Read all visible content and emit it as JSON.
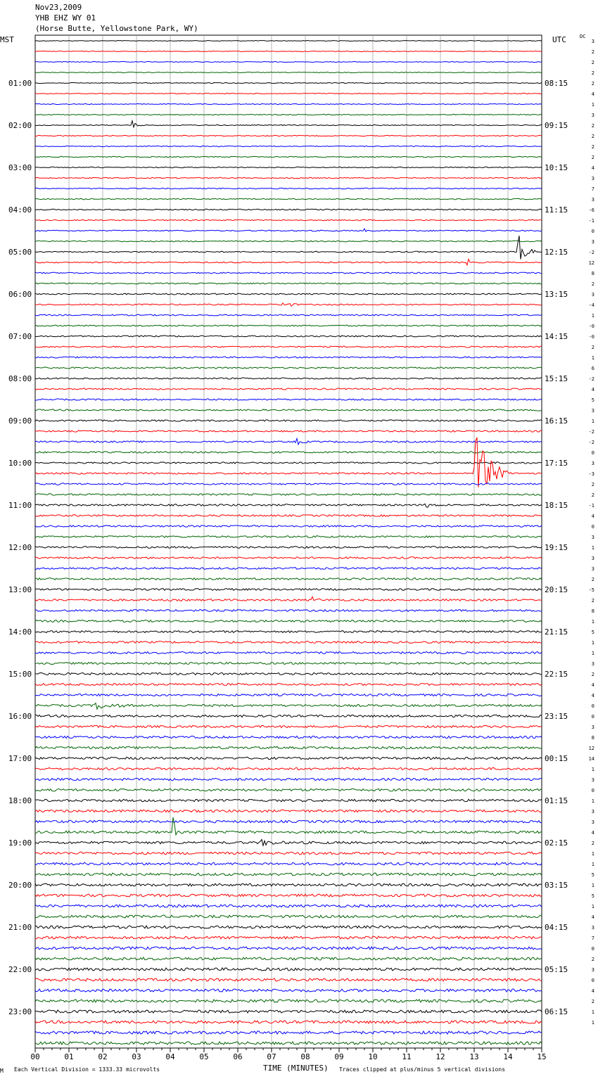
{
  "header": {
    "date": "Nov23,2009",
    "station": "YHB EHZ WY 01",
    "location": "(Horse Butte, Yellowstone Park, WY)"
  },
  "corner_labels": {
    "left": "MST",
    "right": "UTC",
    "dc": "DC"
  },
  "footer": {
    "scale_note": "Each Vertical Division = 1333.33 microvolts",
    "x_title": "TIME (MINUTES)",
    "clip_note": "Traces clipped at plus/minus 5 vertical divisions",
    "corner_mark": "M"
  },
  "colors": {
    "cycle": [
      "#000000",
      "#ff0000",
      "#0000ff",
      "#006400"
    ],
    "grid": "#888888"
  },
  "chart_data": {
    "type": "line",
    "title": "Nov23,2009",
    "xlabel": "TIME (MINUTES)",
    "xlim": [
      0,
      15
    ],
    "x_ticks": [
      "00",
      "01",
      "02",
      "03",
      "04",
      "05",
      "06",
      "07",
      "08",
      "09",
      "10",
      "11",
      "12",
      "13",
      "14",
      "15"
    ],
    "rows_per_hour": 4,
    "total_rows": 96,
    "left_hour_labels": [
      "01:00",
      "02:00",
      "03:00",
      "04:00",
      "05:00",
      "06:00",
      "07:00",
      "08:00",
      "09:00",
      "10:00",
      "11:00",
      "12:00",
      "13:00",
      "14:00",
      "15:00",
      "16:00",
      "17:00",
      "18:00",
      "19:00",
      "20:00",
      "21:00",
      "22:00",
      "23:00"
    ],
    "right_hour_labels": [
      "08:15",
      "09:15",
      "10:15",
      "11:15",
      "12:15",
      "13:15",
      "14:15",
      "15:15",
      "16:15",
      "17:15",
      "18:15",
      "19:15",
      "20:15",
      "21:15",
      "22:15",
      "23:15",
      "00:15",
      "01:15",
      "02:15",
      "03:15",
      "04:15",
      "05:15",
      "06:15"
    ],
    "dc_offsets": [
      "3",
      "2",
      "2",
      "2",
      "2",
      "4",
      "1",
      "3",
      "2",
      "2",
      "2",
      "2",
      "4",
      "3",
      "7",
      "3",
      "-6",
      "-1",
      "0",
      "3",
      "-2",
      "12",
      "8",
      "2",
      "3",
      "-4",
      "1",
      "-0",
      "-0",
      "2",
      "1",
      "6",
      "-2",
      "4",
      "5",
      "3",
      "1",
      "-2",
      "-2",
      "0",
      "3",
      "-3",
      "2",
      "2",
      "-1",
      "4",
      "0",
      "3",
      "1",
      "3",
      "3",
      "2",
      "-5",
      "2",
      "8",
      "1",
      "5",
      "1",
      "1",
      "3",
      "2",
      "4",
      "4",
      "0",
      "0",
      "3",
      "8",
      "12",
      "14",
      "1",
      "3",
      "0",
      "1",
      "3",
      "3",
      "4",
      "2",
      "1",
      "1",
      "5",
      "1",
      "5",
      "1",
      "4",
      "3",
      "7",
      "0",
      "2",
      "3",
      "0",
      "4",
      "2",
      "1",
      "1"
    ],
    "events": [
      {
        "row": 20,
        "minute": 14.3,
        "amplitude": 2.2,
        "duration": 0.5
      },
      {
        "row": 21,
        "minute": 12.8,
        "amplitude": 1.5,
        "duration": 0.1
      },
      {
        "row": 25,
        "minute": 7.3,
        "amplitude": 0.5,
        "duration": 0.5
      },
      {
        "row": 41,
        "minute": 13.0,
        "amplitude": 5.0,
        "duration": 1.0
      },
      {
        "row": 38,
        "minute": 7.7,
        "amplitude": 0.4,
        "duration": 0.4
      },
      {
        "row": 44,
        "minute": 11.5,
        "amplitude": 0.3,
        "duration": 0.5
      },
      {
        "row": 18,
        "minute": 9.7,
        "amplitude": 0.3,
        "duration": 0.2
      },
      {
        "row": 8,
        "minute": 2.9,
        "amplitude": 0.3,
        "duration": 0.3
      },
      {
        "row": 75,
        "minute": 4.1,
        "amplitude": 1.5,
        "duration": 0.1
      },
      {
        "row": 76,
        "minute": 6.7,
        "amplitude": 0.3,
        "duration": 0.7
      },
      {
        "row": 63,
        "minute": 1.8,
        "amplitude": 0.3,
        "duration": 1.2
      },
      {
        "row": 53,
        "minute": 8.2,
        "amplitude": 0.3,
        "duration": 0.3
      }
    ]
  }
}
